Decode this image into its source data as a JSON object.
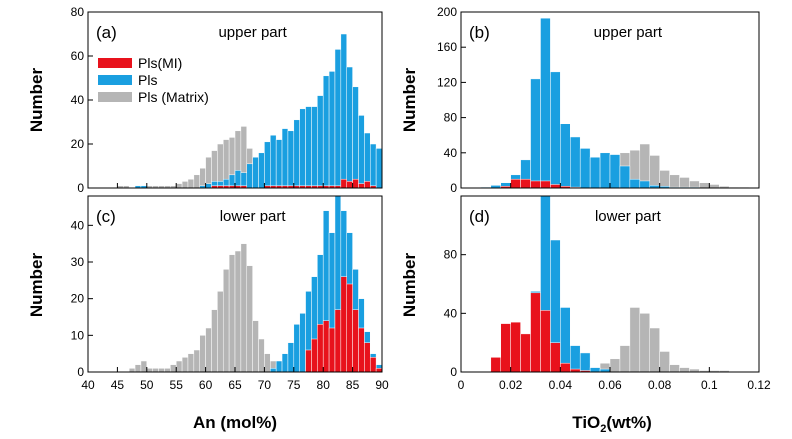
{
  "colors": {
    "pls_mi": "#e8121c",
    "pls": "#1a9fe0",
    "pls_matrix": "#b5b5b5"
  },
  "legend": {
    "items": [
      "Pls(MI)",
      "Pls",
      "Pls (Matrix)"
    ]
  },
  "axes": {
    "an_xlabel": "An (mol%)",
    "tio2_xlabel_main": "TiO",
    "tio2_xlabel_sub": "2",
    "tio2_xlabel_rest": "(wt%)",
    "ylabel": "Number"
  },
  "chart_data": [
    {
      "type": "bar",
      "panel": "(a)",
      "title": "upper part",
      "xlabel": "An (mol%)",
      "ylabel": "Number",
      "xlim": [
        40,
        90
      ],
      "ylim": [
        0,
        80
      ],
      "xticks": [
        40,
        45,
        50,
        55,
        60,
        65,
        70,
        75,
        80,
        85,
        90
      ],
      "yticks": [
        0,
        20,
        40,
        60,
        80
      ],
      "bin_width": 1,
      "bin_starts": [
        45,
        46,
        47,
        48,
        49,
        50,
        51,
        52,
        53,
        54,
        55,
        56,
        57,
        58,
        59,
        60,
        61,
        62,
        63,
        64,
        65,
        66,
        67,
        68,
        69,
        70,
        71,
        72,
        73,
        74,
        75,
        76,
        77,
        78,
        79,
        80,
        81,
        82,
        83,
        84,
        85,
        86,
        87,
        88,
        89
      ],
      "series": [
        {
          "name": "Pls (Matrix)",
          "values": [
            1,
            1,
            0,
            1,
            1,
            1,
            1,
            1,
            1,
            1,
            2,
            3,
            4,
            6,
            9,
            14,
            17,
            20,
            22,
            23,
            26,
            28,
            18,
            12,
            6,
            4,
            3,
            2,
            1,
            1,
            1,
            1,
            0,
            0,
            0,
            0,
            0,
            0,
            0,
            0,
            0,
            0,
            0,
            0,
            0
          ]
        },
        {
          "name": "Pls",
          "values": [
            0,
            0,
            0,
            1,
            1,
            0,
            0,
            0,
            0,
            0,
            0,
            0,
            0,
            0,
            1,
            2,
            3,
            3,
            4,
            6,
            8,
            7,
            11,
            14,
            16,
            21,
            24,
            22,
            27,
            26,
            31,
            36,
            37,
            37,
            42,
            51,
            53,
            63,
            70,
            55,
            46,
            33,
            25,
            20,
            18
          ]
        },
        {
          "name": "Pls(MI)",
          "values": [
            0,
            0,
            0,
            0,
            0,
            0,
            0,
            0,
            0,
            0,
            0,
            0,
            0,
            0,
            0,
            0,
            1,
            1,
            1,
            1,
            1,
            1,
            0,
            0,
            0,
            1,
            1,
            1,
            1,
            1,
            1,
            1,
            1,
            1,
            1,
            1,
            1,
            1,
            4,
            3,
            4,
            2,
            3,
            1,
            0
          ]
        }
      ],
      "legend": "top-left"
    },
    {
      "type": "bar",
      "panel": "(b)",
      "title": "upper part",
      "xlabel": "TiO2 (wt%)",
      "ylabel": "Number",
      "xlim": [
        0,
        0.12
      ],
      "ylim": [
        0,
        200
      ],
      "xticks": [
        0,
        0.02,
        0.04,
        0.06,
        0.08,
        0.1,
        0.12
      ],
      "yticks": [
        0,
        40,
        80,
        120,
        160,
        200
      ],
      "bin_width": 0.004,
      "bin_starts": [
        0.008,
        0.012,
        0.016,
        0.02,
        0.024,
        0.028,
        0.032,
        0.036,
        0.04,
        0.044,
        0.048,
        0.052,
        0.056,
        0.06,
        0.064,
        0.068,
        0.072,
        0.076,
        0.08,
        0.084,
        0.088,
        0.092,
        0.096,
        0.1,
        0.104,
        0.108,
        0.112
      ],
      "series": [
        {
          "name": "Pls (Matrix)",
          "values": [
            0,
            0,
            0,
            0,
            1,
            2,
            2,
            3,
            4,
            5,
            6,
            8,
            10,
            18,
            40,
            43,
            50,
            37,
            20,
            15,
            12,
            8,
            6,
            4,
            2,
            1,
            1
          ]
        },
        {
          "name": "Pls",
          "values": [
            1,
            3,
            6,
            15,
            32,
            124,
            193,
            132,
            73,
            58,
            45,
            35,
            40,
            38,
            25,
            10,
            8,
            3,
            2,
            1,
            1,
            1,
            0,
            0,
            0,
            0,
            0
          ]
        },
        {
          "name": "Pls(MI)",
          "values": [
            0,
            0,
            2,
            10,
            10,
            8,
            8,
            4,
            2,
            1,
            0,
            0,
            0,
            0,
            0,
            0,
            0,
            0,
            0,
            0,
            0,
            0,
            0,
            0,
            0,
            0,
            0
          ]
        }
      ]
    },
    {
      "type": "bar",
      "panel": "(c)",
      "title": "lower part",
      "xlabel": "An (mol%)",
      "ylabel": "Number",
      "xlim": [
        40,
        90
      ],
      "ylim": [
        0,
        48
      ],
      "xticks": [
        40,
        45,
        50,
        55,
        60,
        65,
        70,
        75,
        80,
        85,
        90
      ],
      "yticks": [
        0,
        10,
        20,
        30,
        40
      ],
      "bin_width": 1,
      "bin_starts": [
        47,
        48,
        49,
        50,
        51,
        52,
        53,
        54,
        55,
        56,
        57,
        58,
        59,
        60,
        61,
        62,
        63,
        64,
        65,
        66,
        67,
        68,
        69,
        70,
        71,
        72,
        73,
        74,
        75,
        76,
        77,
        78,
        79,
        80,
        81,
        82,
        83,
        84,
        85,
        86,
        87,
        88,
        89
      ],
      "series": [
        {
          "name": "Pls (Matrix)",
          "values": [
            1,
            2,
            3,
            1,
            1,
            1,
            1,
            2,
            3,
            4,
            5,
            6,
            10,
            12,
            17,
            22,
            28,
            32,
            33,
            35,
            29,
            14,
            9,
            5,
            3,
            2,
            1,
            1,
            0,
            0,
            0,
            0,
            0,
            0,
            0,
            0,
            0,
            0,
            0,
            0,
            0,
            0,
            0
          ]
        },
        {
          "name": "Pls",
          "values": [
            0,
            0,
            0,
            0,
            0,
            0,
            0,
            0,
            0,
            0,
            0,
            0,
            0,
            0,
            0,
            0,
            0,
            0,
            0,
            0,
            0,
            0,
            0,
            0,
            1,
            3,
            5,
            8,
            13,
            16,
            22,
            26,
            32,
            44,
            38,
            49,
            44,
            38,
            28,
            20,
            11,
            5,
            2
          ]
        },
        {
          "name": "Pls(MI)",
          "values": [
            0,
            0,
            0,
            0,
            0,
            0,
            0,
            0,
            0,
            0,
            0,
            0,
            0,
            0,
            0,
            0,
            0,
            0,
            0,
            0,
            0,
            0,
            0,
            0,
            0,
            0,
            0,
            0,
            0,
            0,
            6,
            9,
            13,
            14,
            12,
            17,
            26,
            24,
            17,
            12,
            8,
            4,
            1
          ]
        }
      ]
    },
    {
      "type": "bar",
      "panel": "(d)",
      "title": "lower part",
      "xlabel": "TiO2 (wt%)",
      "ylabel": "Number",
      "xlim": [
        0,
        0.12
      ],
      "ylim": [
        0,
        120
      ],
      "xticks": [
        0,
        0.02,
        0.04,
        0.06,
        0.08,
        0.1,
        0.12
      ],
      "yticks": [
        0,
        40,
        80
      ],
      "bin_width": 0.004,
      "bin_starts": [
        0.012,
        0.016,
        0.02,
        0.024,
        0.028,
        0.032,
        0.036,
        0.04,
        0.044,
        0.048,
        0.052,
        0.056,
        0.06,
        0.064,
        0.068,
        0.072,
        0.076,
        0.08,
        0.084,
        0.088,
        0.092,
        0.096,
        0.1,
        0.104
      ],
      "series": [
        {
          "name": "Pls (Matrix)",
          "values": [
            0,
            0,
            0,
            0,
            0,
            0,
            0,
            0,
            0,
            0,
            2,
            6,
            9,
            18,
            44,
            40,
            30,
            14,
            5,
            3,
            2,
            1,
            1,
            1
          ]
        },
        {
          "name": "Pls",
          "values": [
            0,
            1,
            0,
            3,
            55,
            120,
            90,
            44,
            18,
            13,
            3,
            2,
            0,
            0,
            0,
            0,
            0,
            0,
            0,
            0,
            0,
            0,
            0,
            0
          ]
        },
        {
          "name": "Pls(MI)",
          "values": [
            10,
            33,
            34,
            26,
            54,
            42,
            20,
            6,
            2,
            1,
            0,
            0,
            0,
            0,
            0,
            0,
            0,
            0,
            0,
            0,
            0,
            0,
            0,
            0
          ]
        }
      ]
    }
  ]
}
